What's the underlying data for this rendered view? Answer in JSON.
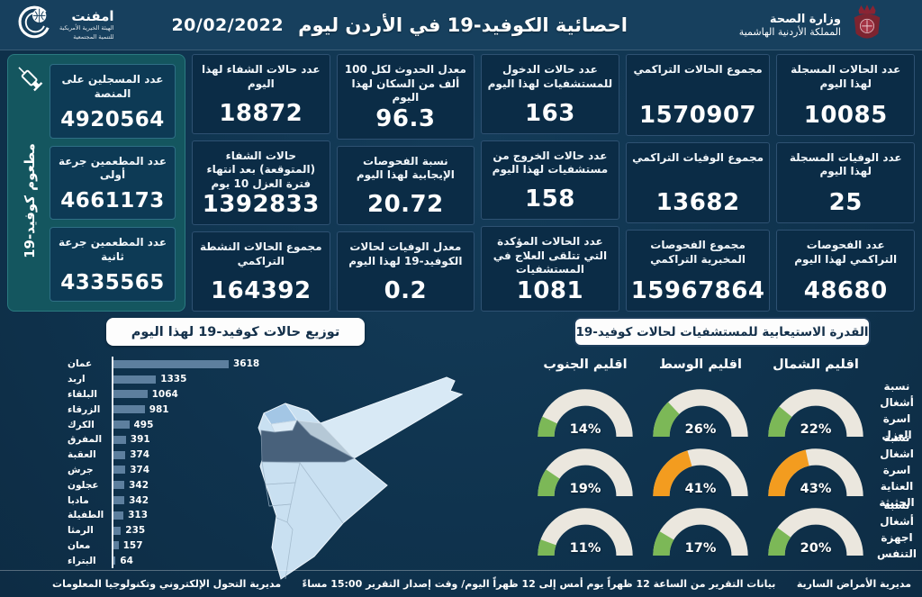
{
  "header": {
    "logo": {
      "title": "امفنت",
      "sub1": "الهيئة الخيرية الأمريكية",
      "sub2": "للتنمية المجتمعية"
    },
    "title": "احصائية الكوفيد-19 في الأردن ليوم",
    "date": "20/02/2022",
    "ministry": {
      "line1": "وزارة الصحة",
      "line2": "المملكة الأردنية الهاشمية"
    }
  },
  "stats_columns": [
    {
      "cards": [
        {
          "label": "عدد الحالات المسجلة لهذا اليوم",
          "value": "10085"
        },
        {
          "label": "عدد الوفيات المسجلة لهذا اليوم",
          "value": "25"
        },
        {
          "label": "عدد الفحوصات التراكمي لهذا اليوم",
          "value": "48680"
        }
      ]
    },
    {
      "cards": [
        {
          "label": "مجموع الحالات التراكمي",
          "value": "1570907"
        },
        {
          "label": "مجموع الوفيات التراكمي",
          "value": "13682"
        },
        {
          "label": "مجموع الفحوصات المخبرية التراكمي",
          "value": "15967864"
        }
      ]
    },
    {
      "cards": [
        {
          "label": "عدد حالات الدخول للمستشفيات لهذا اليوم",
          "value": "163"
        },
        {
          "label": "عدد حالات الخروج من مستشفيات لهذا اليوم",
          "value": "158"
        },
        {
          "label": "عدد الحالات المؤكدة التي تتلقى العلاج في المستشفيات",
          "value": "1081"
        }
      ]
    },
    {
      "cards": [
        {
          "label": "معدل الحدوث لكل 100 ألف من السكان لهذا اليوم",
          "value": "96.3"
        },
        {
          "label": "نسبة الفحوصات الإيجابية لهذا اليوم",
          "value": "20.72"
        },
        {
          "label": "معدل الوفيات لحالات الكوفيد-19 لهذا اليوم",
          "value": "0.2"
        }
      ]
    },
    {
      "cards": [
        {
          "label": "عدد حالات الشفاء لهذا اليوم",
          "value": "18872"
        },
        {
          "label": "حالات الشفاء (المتوقعة) بعد انتهاء فترة العزل 10 يوم",
          "value": "1392833"
        },
        {
          "label": "مجموع الحالات النشطة التراكمي",
          "value": "164392"
        }
      ]
    }
  ],
  "vaccine": {
    "caption": "مطعوم كوفيد-19",
    "cards": [
      {
        "label": "عدد المسجلين على المنصة",
        "value": "4920564"
      },
      {
        "label": "عدد المطعمين جرعة أولى",
        "value": "4661173"
      },
      {
        "label": "عدد المطعمين جرعة ثانية",
        "value": "4335565"
      }
    ]
  },
  "chart_data": [
    {
      "type": "bar",
      "title": "توزيع حالات كوفيد-19 لهذا اليوم",
      "orientation": "horizontal",
      "categories": [
        "عمان",
        "اربد",
        "البلقاء",
        "الزرقاء",
        "الكرك",
        "المفرق",
        "العقبة",
        "جرش",
        "عجلون",
        "مادبا",
        "الطفيلة",
        "الرمثا",
        "معان",
        "البتراء"
      ],
      "values": [
        3618,
        1335,
        1064,
        981,
        495,
        391,
        374,
        374,
        342,
        342,
        313,
        235,
        157,
        64
      ],
      "xlim": [
        0,
        3618
      ]
    },
    {
      "type": "gauge-grid",
      "title": "القدرة الاستيعابية للمستشفيات لحالات كوفيد-19",
      "unit": "%",
      "regions": [
        "اقليم الجنوب",
        "اقليم الوسط",
        "اقليم الشمال"
      ],
      "rows": [
        {
          "label": "نسبة أشغال اسرة العزل",
          "values": [
            14,
            26,
            22
          ],
          "colors": [
            "green",
            "green",
            "green"
          ]
        },
        {
          "label": "نسبة اشغال اسرة العناية الحثيثة",
          "values": [
            19,
            41,
            43
          ],
          "colors": [
            "green",
            "orange",
            "orange"
          ]
        },
        {
          "label": "نسبة أشغال اجهزة التنفس",
          "values": [
            11,
            17,
            20
          ],
          "colors": [
            "green",
            "green",
            "green"
          ]
        }
      ]
    }
  ],
  "colors": {
    "green": "#7cb857",
    "orange": "#f39c1f",
    "bar": "#5d7f9e",
    "track": "#ebe7de"
  },
  "footer": {
    "right": "مديرية الأمراض السارية",
    "center": "بيانات التقرير من الساعة 12 ظهراً يوم أمس إلى 12 ظهراً اليوم/ وقت إصدار التقرير 15:00 مساءً",
    "left": "مديرية التحول الإلكتروني وتكنولوجيا المعلومات"
  }
}
